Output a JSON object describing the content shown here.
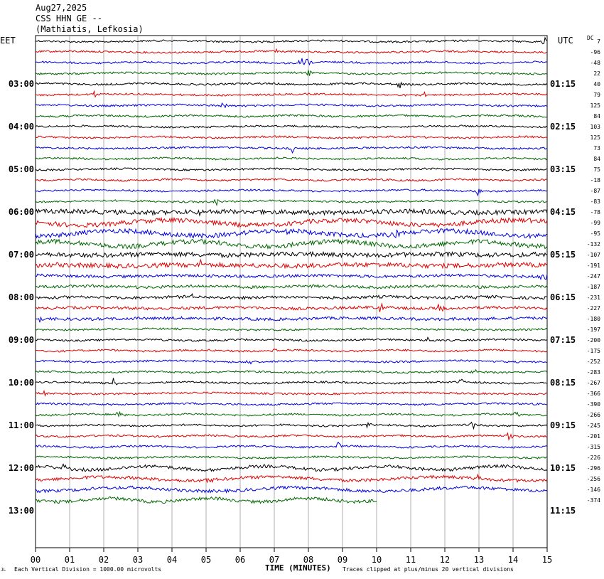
{
  "header": {
    "date": "Aug27,2025",
    "station": "CSS HHN GE --",
    "location": "(Mathiatis, Lefkosia)"
  },
  "chart_data": {
    "type": "line",
    "title": "CSS HHN GE --",
    "left_timezone": "EET",
    "right_timezone": "UTC",
    "dc_label": "DC",
    "xlabel": "TIME (MINUTES)",
    "xlim": [
      0,
      15
    ],
    "x_ticks": [
      "00",
      "01",
      "02",
      "03",
      "04",
      "05",
      "06",
      "07",
      "08",
      "09",
      "10",
      "11",
      "12",
      "13",
      "14",
      "15"
    ],
    "left_hour_labels": [
      "03:00",
      "04:00",
      "05:00",
      "06:00",
      "07:00",
      "08:00",
      "09:00",
      "10:00",
      "11:00",
      "12:00",
      "13:00"
    ],
    "right_hour_labels": [
      "01:15",
      "02:15",
      "03:15",
      "04:15",
      "05:15",
      "06:15",
      "07:15",
      "08:15",
      "09:15",
      "10:15",
      "11:15"
    ],
    "trace_colors": [
      "#000000",
      "#dd0000",
      "#0000dd",
      "#006600"
    ],
    "grid": true,
    "traces_per_hour": 4,
    "minutes_per_trace": 15,
    "dc_offsets": [
      7,
      -96,
      -48,
      22,
      40,
      79,
      125,
      84,
      103,
      125,
      73,
      84,
      75,
      -18,
      -87,
      -83,
      -78,
      -99,
      -95,
      -132,
      -107,
      -191,
      -247,
      -187,
      -231,
      -227,
      -180,
      -197,
      -200,
      -175,
      -252,
      -283,
      -267,
      -366,
      -390,
      -266,
      -245,
      -201,
      -315,
      -226,
      -296,
      -256,
      -146,
      -374
    ],
    "last_trace_end_minute": 10,
    "scale_note": "Each Vertical Division = 1000.00 microvolts",
    "clip_note": "Traces clipped at plus/minus 20 vertical divisions",
    "corner_mark": "JL"
  }
}
